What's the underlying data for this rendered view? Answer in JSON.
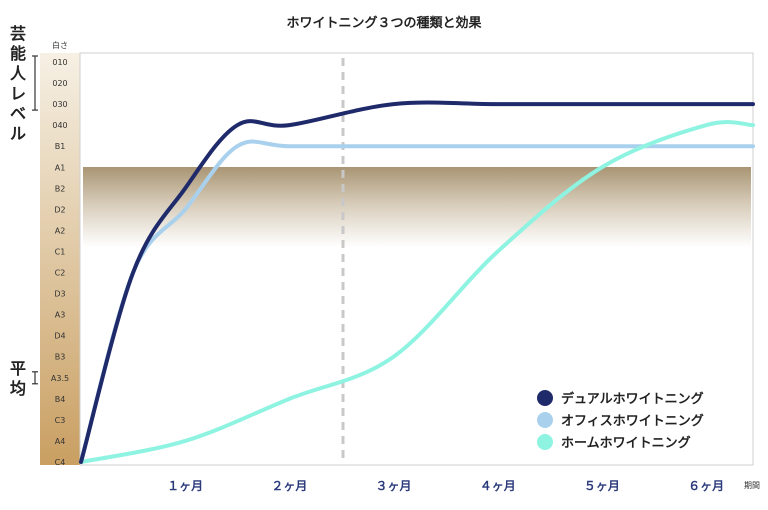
{
  "chart_data": {
    "type": "line",
    "title": "ホワイトニング３つの種類と効果",
    "y_axis_header": "白さ",
    "x_axis_unit": "期間",
    "y_categories": [
      "010",
      "020",
      "030",
      "040",
      "B1",
      "A1",
      "B2",
      "D2",
      "A2",
      "C1",
      "C2",
      "D3",
      "A3",
      "D4",
      "B3",
      "A3.5",
      "B4",
      "C3",
      "A4",
      "C4"
    ],
    "x_ticks": [
      {
        "x": 1,
        "label": "１ヶ月"
      },
      {
        "x": 2,
        "label": "２ヶ月"
      },
      {
        "x": 3,
        "label": "３ヶ月"
      },
      {
        "x": 4,
        "label": "４ヶ月"
      },
      {
        "x": 5,
        "label": "５ヶ月"
      },
      {
        "x": 6,
        "label": "６ヶ月"
      }
    ],
    "xlim": [
      0,
      6.45
    ],
    "ylim": [
      "C4",
      "010"
    ],
    "band_labels": [
      {
        "label": "芸能人レベル",
        "from": "010",
        "to": "030"
      },
      {
        "label": "平均",
        "from": "A3.5",
        "to": "A3.5"
      }
    ],
    "reference_line_x": 2,
    "highlight_band_top": "A1",
    "series": [
      {
        "name": "デュアルホワイトニング",
        "color": "#1f2a6b",
        "points": [
          [
            0,
            "C4"
          ],
          [
            0.5,
            "C2"
          ],
          [
            1,
            "B2"
          ],
          [
            1.5,
            "040"
          ],
          [
            2,
            "040"
          ],
          [
            3,
            "030"
          ],
          [
            4,
            "030"
          ],
          [
            5,
            "030"
          ],
          [
            6,
            "030"
          ],
          [
            6.45,
            "030"
          ]
        ]
      },
      {
        "name": "オフィスホワイトニング",
        "color": "#a9d1ee",
        "points": [
          [
            0,
            "C4"
          ],
          [
            0.5,
            "C2"
          ],
          [
            1,
            "D2"
          ],
          [
            1.5,
            "B1"
          ],
          [
            2,
            "B1"
          ],
          [
            3,
            "B1"
          ],
          [
            4,
            "B1"
          ],
          [
            5,
            "B1"
          ],
          [
            6,
            "B1"
          ],
          [
            6.45,
            "B1"
          ]
        ]
      },
      {
        "name": "ホームホワイトニング",
        "color": "#8ff3e2",
        "points": [
          [
            0,
            "C4"
          ],
          [
            1,
            "A4"
          ],
          [
            2,
            "B4"
          ],
          [
            3,
            "B3"
          ],
          [
            4,
            "C1"
          ],
          [
            5,
            "A1"
          ],
          [
            6,
            "040"
          ],
          [
            6.45,
            "040"
          ]
        ]
      }
    ],
    "legend_position": "bottom-right",
    "grid": false
  }
}
